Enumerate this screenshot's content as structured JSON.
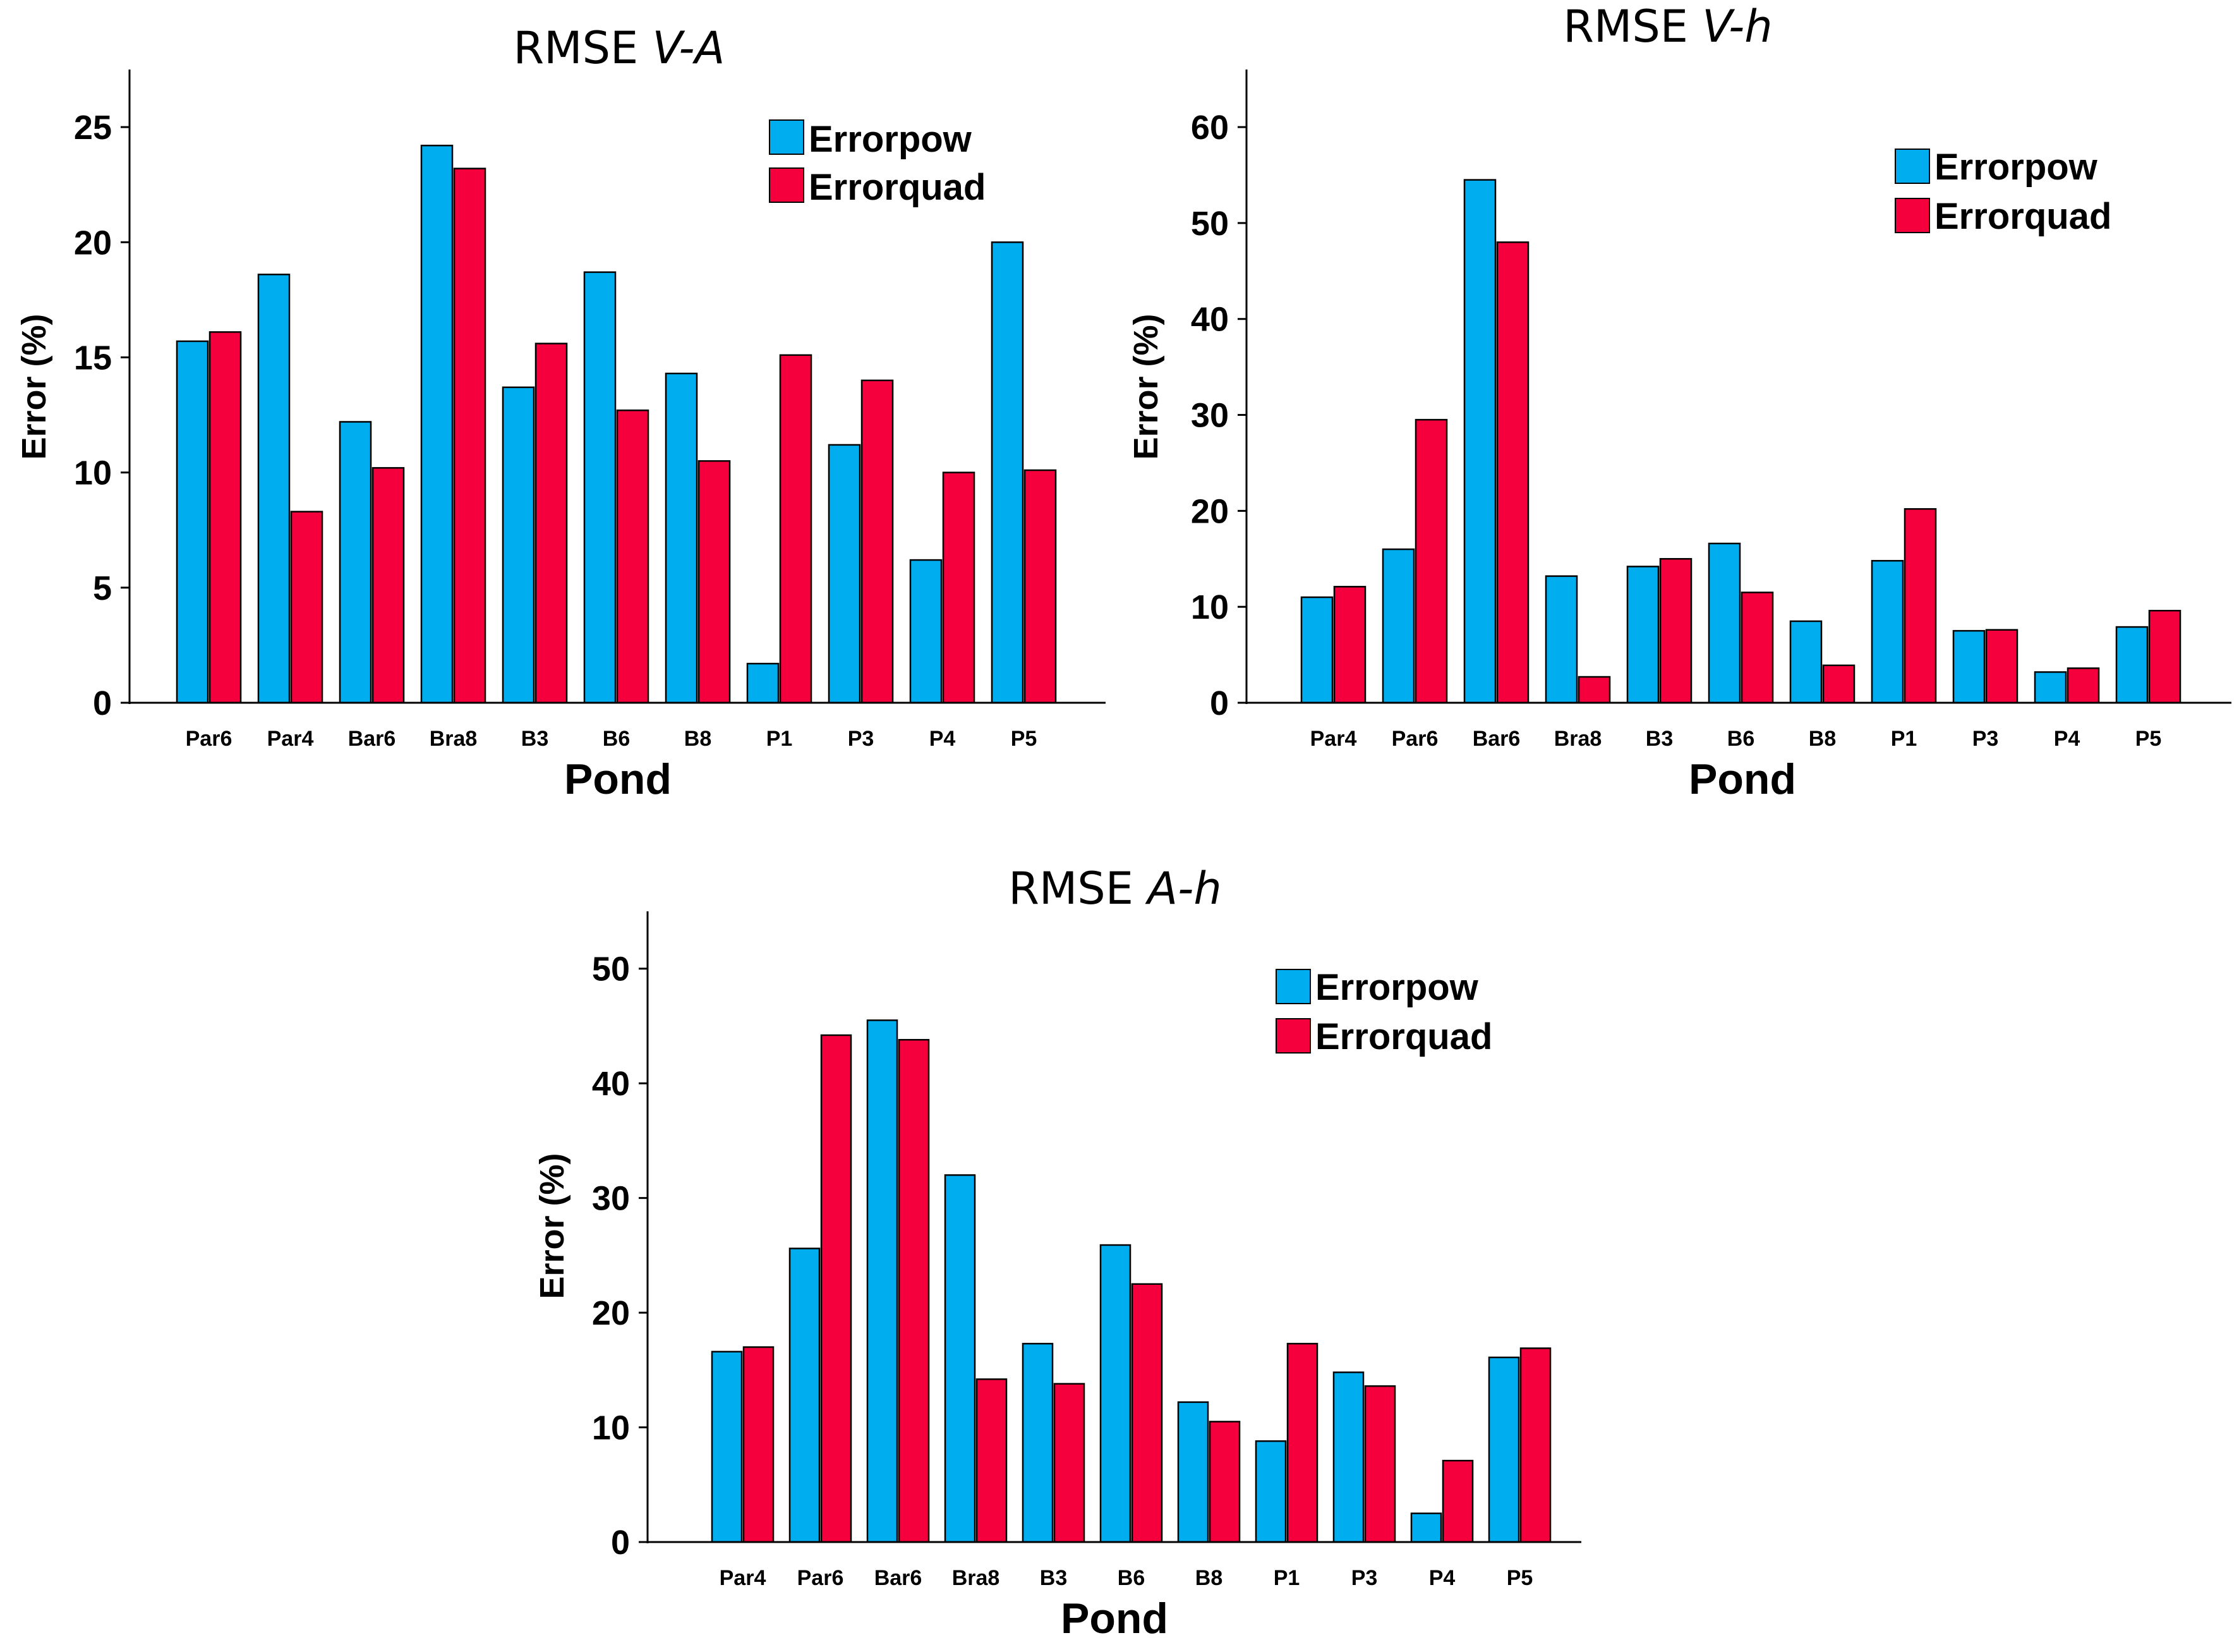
{
  "colors": {
    "errorpow": "#00AEEF",
    "errorquad": "#F5003C"
  },
  "chart_data": [
    {
      "type": "bar",
      "title_prefix": "RMSE ",
      "title_italic": "V-A",
      "xlabel": "Pond",
      "ylabel": "Error (%)",
      "ylim": [
        0,
        27.5
      ],
      "yticks": [
        0,
        5,
        10,
        15,
        20,
        25
      ],
      "legend_position": "top-right",
      "categories": [
        "Par6",
        "Par4",
        "Bar6",
        "Bra8",
        "B3",
        "B6",
        "B8",
        "P1",
        "P3",
        "P4",
        "P5"
      ],
      "series": [
        {
          "name": "Errorpow",
          "values": [
            15.7,
            18.6,
            12.2,
            24.2,
            13.7,
            18.7,
            14.3,
            1.7,
            11.2,
            6.2,
            20.0
          ]
        },
        {
          "name": "Errorquad",
          "values": [
            16.1,
            8.3,
            10.2,
            23.2,
            15.6,
            12.7,
            10.5,
            15.1,
            14.0,
            10.0,
            10.1
          ]
        }
      ]
    },
    {
      "type": "bar",
      "title_prefix": "RMSE ",
      "title_italic": "V-h",
      "xlabel": "Pond",
      "ylabel": "Error (%)",
      "ylim": [
        0,
        66
      ],
      "yticks": [
        0,
        10,
        20,
        30,
        40,
        50,
        60
      ],
      "legend_position": "top-right",
      "categories": [
        "Par4",
        "Par6",
        "Bar6",
        "Bra8",
        "B3",
        "B6",
        "B8",
        "P1",
        "P3",
        "P4",
        "P5"
      ],
      "series": [
        {
          "name": "Errorpow",
          "values": [
            11.0,
            16.0,
            54.5,
            13.2,
            14.2,
            16.6,
            8.5,
            14.8,
            7.5,
            3.2,
            7.9
          ]
        },
        {
          "name": "Errorquad",
          "values": [
            12.1,
            29.5,
            48.0,
            2.7,
            15.0,
            11.5,
            3.9,
            20.2,
            7.6,
            3.6,
            9.6
          ]
        }
      ]
    },
    {
      "type": "bar",
      "title_prefix": "RMSE ",
      "title_italic": "A-h",
      "xlabel": "Pond",
      "ylabel": "Error (%)",
      "ylim": [
        0,
        55
      ],
      "yticks": [
        0,
        10,
        20,
        30,
        40,
        50
      ],
      "legend_position": "top-right",
      "categories": [
        "Par4",
        "Par6",
        "Bar6",
        "Bra8",
        "B3",
        "B6",
        "B8",
        "P1",
        "P3",
        "P4",
        "P5"
      ],
      "series": [
        {
          "name": "Errorpow",
          "values": [
            16.6,
            25.6,
            45.5,
            32.0,
            17.3,
            25.9,
            12.2,
            8.8,
            14.8,
            2.5,
            16.1
          ]
        },
        {
          "name": "Errorquad",
          "values": [
            17.0,
            44.2,
            43.8,
            14.2,
            13.8,
            22.5,
            10.5,
            17.3,
            13.6,
            7.1,
            16.9
          ]
        }
      ]
    }
  ]
}
